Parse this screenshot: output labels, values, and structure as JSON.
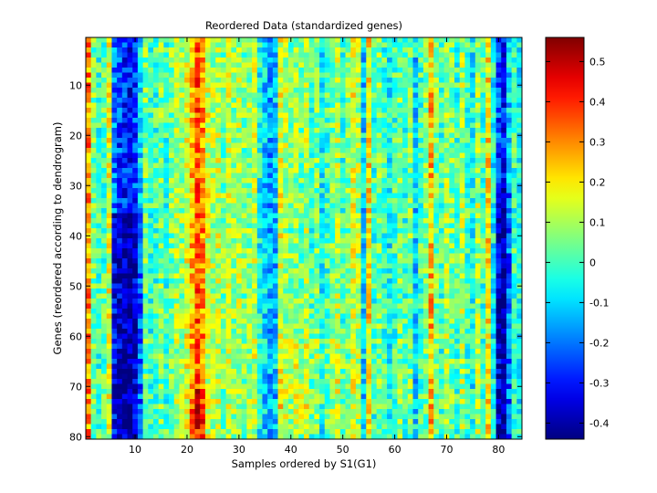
{
  "chart_data": {
    "type": "heatmap",
    "title": "Reordered Data (standardized genes)",
    "xlabel": "Samples ordered by S1(G1)",
    "ylabel": "Genes (reordered according to dendrogram)",
    "n_cols": 84,
    "n_rows": 80,
    "xlim": [
      0.5,
      84.5
    ],
    "ylim": [
      80.5,
      0.5
    ],
    "x_ticks": [
      10,
      20,
      30,
      40,
      50,
      60,
      70,
      80
    ],
    "x_tick_labels": [
      "10",
      "20",
      "30",
      "40",
      "50",
      "60",
      "70",
      "80"
    ],
    "y_ticks": [
      10,
      20,
      30,
      40,
      50,
      60,
      70,
      80
    ],
    "y_tick_labels": [
      "10",
      "20",
      "30",
      "40",
      "50",
      "60",
      "70",
      "80"
    ],
    "colormap": "jet",
    "clim": [
      -0.44,
      0.56
    ],
    "colorbar_ticks": [
      0.5,
      0.4,
      0.3,
      0.2,
      0.1,
      0,
      -0.1,
      -0.2,
      -0.3,
      -0.4
    ],
    "colorbar_tick_labels": [
      "0.5",
      "0.4",
      "0.3",
      "0.2",
      "0.1",
      "0",
      "-0.1",
      "-0.2",
      "-0.3",
      "-0.4"
    ],
    "column_profile": [
      0.3,
      0.05,
      0.0,
      0.02,
      0.15,
      -0.2,
      -0.25,
      -0.28,
      -0.3,
      -0.25,
      -0.1,
      0.05,
      -0.02,
      0.0,
      0.05,
      0.0,
      0.05,
      0.1,
      0.08,
      0.15,
      0.25,
      0.35,
      0.3,
      0.15,
      0.1,
      0.12,
      0.05,
      0.12,
      0.08,
      0.1,
      0.05,
      0.08,
      0.12,
      -0.05,
      -0.1,
      -0.15,
      -0.12,
      0.15,
      0.1,
      0.05,
      0.08,
      0.05,
      0.1,
      0.0,
      0.05,
      -0.05,
      0.0,
      0.05,
      0.1,
      0.0,
      0.05,
      0.15,
      0.1,
      -0.1,
      0.2,
      0.0,
      0.05,
      0.0,
      -0.05,
      0.0,
      0.05,
      0.0,
      0.05,
      -0.1,
      0.0,
      0.05,
      0.25,
      0.05,
      0.0,
      0.1,
      0.05,
      0.0,
      0.1,
      0.0,
      -0.05,
      0.1,
      0.0,
      0.2,
      -0.05,
      -0.25,
      -0.3,
      -0.1,
      0.0,
      -0.05
    ],
    "row_profile_note": "genes 40-80 show stronger contrast in columns 6-11 (deep blue) and 80-82 (deep blue)"
  }
}
